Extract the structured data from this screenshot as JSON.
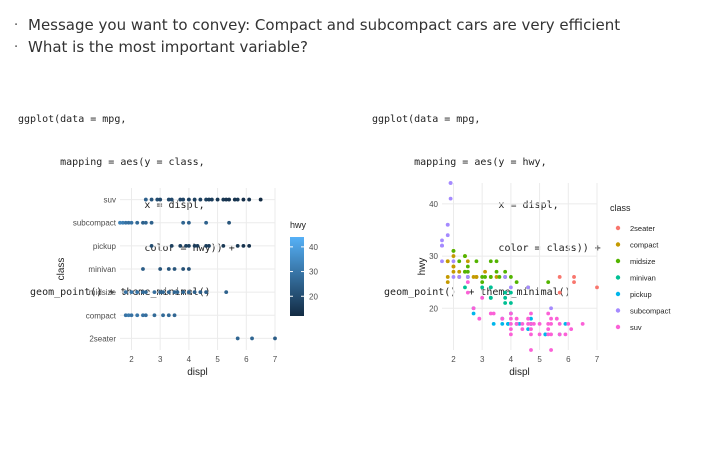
{
  "bullets": [
    "Message you want to convey: Compact and subcompact cars are very efficient",
    "What is the most important variable?"
  ],
  "code_left": [
    "ggplot(data = mpg,",
    "       mapping = aes(y = class,",
    "                     x = displ,",
    "                     color = hwy)) +",
    "  geom_point() + theme_minimal()"
  ],
  "code_right": [
    "ggplot(data = mpg,",
    "       mapping = aes(y = hwy,",
    "                     x = displ,",
    "                     color = class)) +",
    "  geom_point()  + theme_minimal()"
  ],
  "chart_data": [
    {
      "type": "scatter",
      "xlabel": "displ",
      "ylabel": "class",
      "xlim": [
        1.6,
        7.0
      ],
      "x_ticks": [
        "2",
        "3",
        "4",
        "5",
        "6",
        "7"
      ],
      "categories": [
        "suv",
        "subcompact",
        "pickup",
        "minivan",
        "midsize",
        "compact",
        "2seater"
      ],
      "grid": true,
      "legend": {
        "title": "hwy",
        "position": "right",
        "type": "colorbar",
        "ticks": [
          "40",
          "30",
          "20"
        ],
        "range": [
          12,
          44
        ],
        "color_low": "#132B43",
        "color_high": "#56B1F7"
      },
      "series": [
        {
          "category": "suv",
          "points": [
            [
              2.5,
              25
            ],
            [
              2.7,
              22
            ],
            [
              2.9,
              20
            ],
            [
              3.0,
              19
            ],
            [
              3.3,
              19
            ],
            [
              3.4,
              19
            ],
            [
              3.7,
              18
            ],
            [
              3.8,
              18
            ],
            [
              4.0,
              17
            ],
            [
              4.2,
              17
            ],
            [
              4.4,
              17
            ],
            [
              4.6,
              17
            ],
            [
              4.7,
              16
            ],
            [
              4.8,
              16
            ],
            [
              5.0,
              15
            ],
            [
              5.2,
              15
            ],
            [
              5.3,
              14
            ],
            [
              5.4,
              14
            ],
            [
              5.6,
              14
            ],
            [
              5.7,
              15
            ],
            [
              5.9,
              13
            ],
            [
              6.1,
              14
            ],
            [
              6.5,
              12
            ]
          ]
        },
        {
          "category": "subcompact",
          "points": [
            [
              1.6,
              33
            ],
            [
              1.7,
              32
            ],
            [
              1.8,
              29
            ],
            [
              1.9,
              28
            ],
            [
              2.0,
              29
            ],
            [
              2.2,
              27
            ],
            [
              2.4,
              25
            ],
            [
              2.5,
              26
            ],
            [
              2.7,
              25
            ],
            [
              3.8,
              26
            ],
            [
              4.0,
              25
            ],
            [
              4.6,
              25
            ],
            [
              5.4,
              22
            ]
          ]
        },
        {
          "category": "pickup",
          "points": [
            [
              2.7,
              20
            ],
            [
              3.4,
              17
            ],
            [
              3.7,
              17
            ],
            [
              3.9,
              17
            ],
            [
              4.0,
              17
            ],
            [
              4.2,
              16
            ],
            [
              4.3,
              16
            ],
            [
              4.6,
              16
            ],
            [
              4.7,
              16
            ],
            [
              5.2,
              15
            ],
            [
              5.7,
              15
            ],
            [
              5.9,
              14
            ],
            [
              6.1,
              14
            ]
          ]
        },
        {
          "category": "minivan",
          "points": [
            [
              2.4,
              24
            ],
            [
              3.0,
              22
            ],
            [
              3.3,
              22
            ],
            [
              3.5,
              22
            ],
            [
              3.8,
              21
            ],
            [
              4.0,
              21
            ]
          ]
        },
        {
          "category": "midsize",
          "points": [
            [
              1.8,
              29
            ],
            [
              2.0,
              30
            ],
            [
              2.2,
              29
            ],
            [
              2.4,
              28
            ],
            [
              2.5,
              27
            ],
            [
              2.8,
              28
            ],
            [
              3.0,
              26
            ],
            [
              3.1,
              26
            ],
            [
              3.3,
              26
            ],
            [
              3.5,
              26
            ],
            [
              3.6,
              26
            ],
            [
              3.8,
              26
            ],
            [
              4.0,
              26
            ],
            [
              4.2,
              25
            ],
            [
              4.4,
              24
            ],
            [
              4.6,
              24
            ],
            [
              5.3,
              25
            ]
          ]
        },
        {
          "category": "compact",
          "points": [
            [
              1.8,
              29
            ],
            [
              1.9,
              31
            ],
            [
              2.0,
              29
            ],
            [
              2.2,
              30
            ],
            [
              2.4,
              29
            ],
            [
              2.5,
              28
            ],
            [
              2.8,
              27
            ],
            [
              3.1,
              27
            ],
            [
              3.3,
              27
            ],
            [
              3.5,
              26
            ]
          ]
        },
        {
          "category": "2seater",
          "points": [
            [
              5.7,
              26
            ],
            [
              6.2,
              26
            ],
            [
              7.0,
              24
            ]
          ]
        }
      ]
    },
    {
      "type": "scatter",
      "xlabel": "displ",
      "ylabel": "hwy",
      "xlim": [
        1.6,
        7.0
      ],
      "ylim": [
        12,
        44
      ],
      "x_ticks": [
        "2",
        "3",
        "4",
        "5",
        "6",
        "7"
      ],
      "y_ticks": [
        "20",
        "30",
        "40"
      ],
      "grid": true,
      "legend": {
        "title": "class",
        "position": "right"
      },
      "series": [
        {
          "name": "2seater",
          "color": "#F8766D",
          "points": [
            [
              5.7,
              26
            ],
            [
              5.7,
              23
            ],
            [
              6.2,
              26
            ],
            [
              6.2,
              25
            ],
            [
              7.0,
              24
            ]
          ]
        },
        {
          "name": "compact",
          "color": "#C49A00",
          "points": [
            [
              1.8,
              29
            ],
            [
              1.8,
              29
            ],
            [
              2.0,
              31
            ],
            [
              2.0,
              30
            ],
            [
              2.8,
              26
            ],
            [
              2.8,
              26
            ],
            [
              3.1,
              27
            ],
            [
              1.8,
              26
            ],
            [
              1.8,
              25
            ],
            [
              2.0,
              28
            ],
            [
              2.0,
              28
            ],
            [
              2.4,
              27
            ],
            [
              2.5,
              29
            ],
            [
              2.2,
              26
            ],
            [
              2.2,
              27
            ],
            [
              2.4,
              30
            ],
            [
              2.0,
              27
            ],
            [
              2.7,
              26
            ],
            [
              3.3,
              26
            ],
            [
              3.5,
              26
            ]
          ]
        },
        {
          "name": "midsize",
          "color": "#53B400",
          "points": [
            [
              2.4,
              27
            ],
            [
              2.4,
              30
            ],
            [
              3.1,
              26
            ],
            [
              3.5,
              29
            ],
            [
              3.6,
              26
            ],
            [
              2.5,
              28
            ],
            [
              2.5,
              26
            ],
            [
              2.5,
              27
            ],
            [
              3.0,
              26
            ],
            [
              3.0,
              25
            ],
            [
              3.3,
              26
            ],
            [
              3.3,
              29
            ],
            [
              3.8,
              26
            ],
            [
              3.8,
              27
            ],
            [
              4.0,
              26
            ],
            [
              4.2,
              25
            ],
            [
              4.6,
              24
            ],
            [
              5.3,
              25
            ],
            [
              2.0,
              31
            ],
            [
              2.2,
              29
            ],
            [
              2.8,
              29
            ],
            [
              3.5,
              27
            ]
          ]
        },
        {
          "name": "minivan",
          "color": "#00C094",
          "points": [
            [
              2.4,
              24
            ],
            [
              3.0,
              24
            ],
            [
              3.3,
              22
            ],
            [
              3.3,
              22
            ],
            [
              3.3,
              24
            ],
            [
              3.3,
              24
            ],
            [
              3.8,
              22
            ],
            [
              3.8,
              21
            ],
            [
              3.8,
              23
            ],
            [
              4.0,
              23
            ],
            [
              4.0,
              21
            ]
          ]
        },
        {
          "name": "pickup",
          "color": "#00B6EB",
          "points": [
            [
              2.7,
              20
            ],
            [
              2.7,
              19
            ],
            [
              3.4,
              17
            ],
            [
              3.7,
              18
            ],
            [
              3.7,
              17
            ],
            [
              3.9,
              17
            ],
            [
              3.9,
              17
            ],
            [
              4.0,
              19
            ],
            [
              4.2,
              17
            ],
            [
              4.6,
              16
            ],
            [
              4.7,
              17
            ],
            [
              4.7,
              17
            ],
            [
              5.2,
              15
            ],
            [
              5.2,
              15
            ],
            [
              5.7,
              15
            ],
            [
              5.9,
              17
            ],
            [
              4.3,
              17
            ],
            [
              4.7,
              18
            ]
          ]
        },
        {
          "name": "subcompact",
          "color": "#A58AFF",
          "points": [
            [
              1.6,
              33
            ],
            [
              1.6,
              32
            ],
            [
              1.6,
              32
            ],
            [
              1.6,
              29
            ],
            [
              1.6,
              32
            ],
            [
              1.8,
              34
            ],
            [
              1.8,
              36
            ],
            [
              1.8,
              36
            ],
            [
              1.9,
              44
            ],
            [
              1.9,
              44
            ],
            [
              1.9,
              41
            ],
            [
              2.0,
              29
            ],
            [
              2.0,
              26
            ],
            [
              2.2,
              26
            ],
            [
              2.5,
              26
            ],
            [
              3.8,
              26
            ],
            [
              4.0,
              24
            ],
            [
              4.6,
              24
            ],
            [
              5.4,
              20
            ]
          ]
        },
        {
          "name": "suv",
          "color": "#FB61D7",
          "points": [
            [
              2.5,
              25
            ],
            [
              2.5,
              23
            ],
            [
              2.7,
              20
            ],
            [
              3.0,
              22
            ],
            [
              3.3,
              19
            ],
            [
              3.4,
              19
            ],
            [
              4.0,
              18
            ],
            [
              4.0,
              19
            ],
            [
              4.2,
              18
            ],
            [
              4.4,
              17
            ],
            [
              4.6,
              17
            ],
            [
              4.7,
              19
            ],
            [
              4.7,
              16
            ],
            [
              4.7,
              17
            ],
            [
              5.0,
              17
            ],
            [
              5.3,
              17
            ],
            [
              5.3,
              16
            ],
            [
              5.4,
              15
            ],
            [
              5.4,
              17
            ],
            [
              5.7,
              15
            ],
            [
              5.6,
              18
            ],
            [
              5.9,
              15
            ],
            [
              6.1,
              16
            ],
            [
              6.5,
              17
            ],
            [
              4.0,
              16
            ],
            [
              4.6,
              18
            ],
            [
              5.4,
              18
            ],
            [
              4.7,
              15
            ],
            [
              5.3,
              15
            ],
            [
              3.7,
              18
            ],
            [
              4.2,
              17
            ],
            [
              5.7,
              17
            ],
            [
              4.0,
              15
            ],
            [
              6.0,
              17
            ],
            [
              4.8,
              17
            ],
            [
              5.0,
              15
            ],
            [
              5.3,
              19
            ],
            [
              2.9,
              18
            ],
            [
              4.0,
              17
            ],
            [
              4.4,
              16
            ],
            [
              4.7,
              12
            ],
            [
              5.4,
              12
            ]
          ]
        }
      ]
    }
  ]
}
